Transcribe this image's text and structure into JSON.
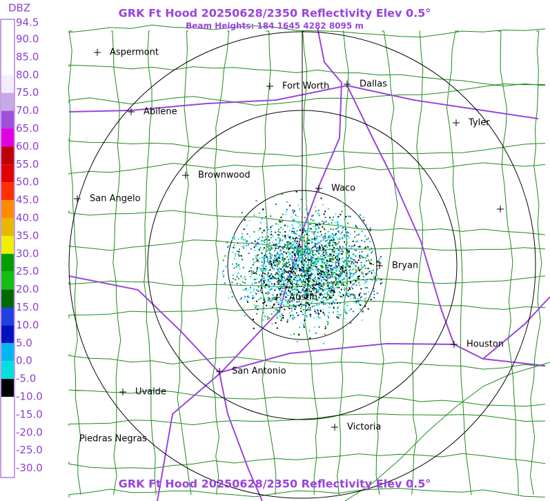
{
  "header": {
    "title": "GRK Ft Hood 20250628/2350 Reflectivity Elev 0.5°",
    "subtitle": "Beam Heights: 184 1645 4282 8095 m"
  },
  "legend": {
    "title": "DBZ",
    "labels": [
      "94.5",
      "90.0",
      "85.0",
      "80.0",
      "75.0",
      "70.0",
      "65.0",
      "60.0",
      "55.0",
      "50.0",
      "45.0",
      "40.0",
      "35.0",
      "30.0",
      "25.0",
      "20.0",
      "15.0",
      "10.0",
      "5.0",
      "0.0",
      "-5.0",
      "-10.0",
      "-15.0",
      "-20.0",
      "-25.0",
      "-30.0"
    ],
    "colors": [
      "#ffffff",
      "#ffffff",
      "#ffffff",
      "#f4eefc",
      "#c9a8e8",
      "#a050d8",
      "#e000e0",
      "#c00000",
      "#e00000",
      "#ff3000",
      "#ff8c00",
      "#e8b800",
      "#f0f000",
      "#00a000",
      "#10c010",
      "#006a00",
      "#2040e0",
      "#0010c0",
      "#00b8f0",
      "#00e0e0",
      "#000000",
      "#ffffff",
      "#ffffff",
      "#ffffff",
      "#ffffff",
      "#ffffff"
    ]
  },
  "cities": [
    "Aspermont",
    "Abilene",
    "Fort Worth",
    "Dallas",
    "Tyler",
    "Brownwood",
    "Waco",
    "San Angelo",
    "Bryan",
    "Austin",
    "Houston",
    "San Antonio",
    "Uvalde",
    "Victoria",
    "Piedras Negras"
  ]
}
